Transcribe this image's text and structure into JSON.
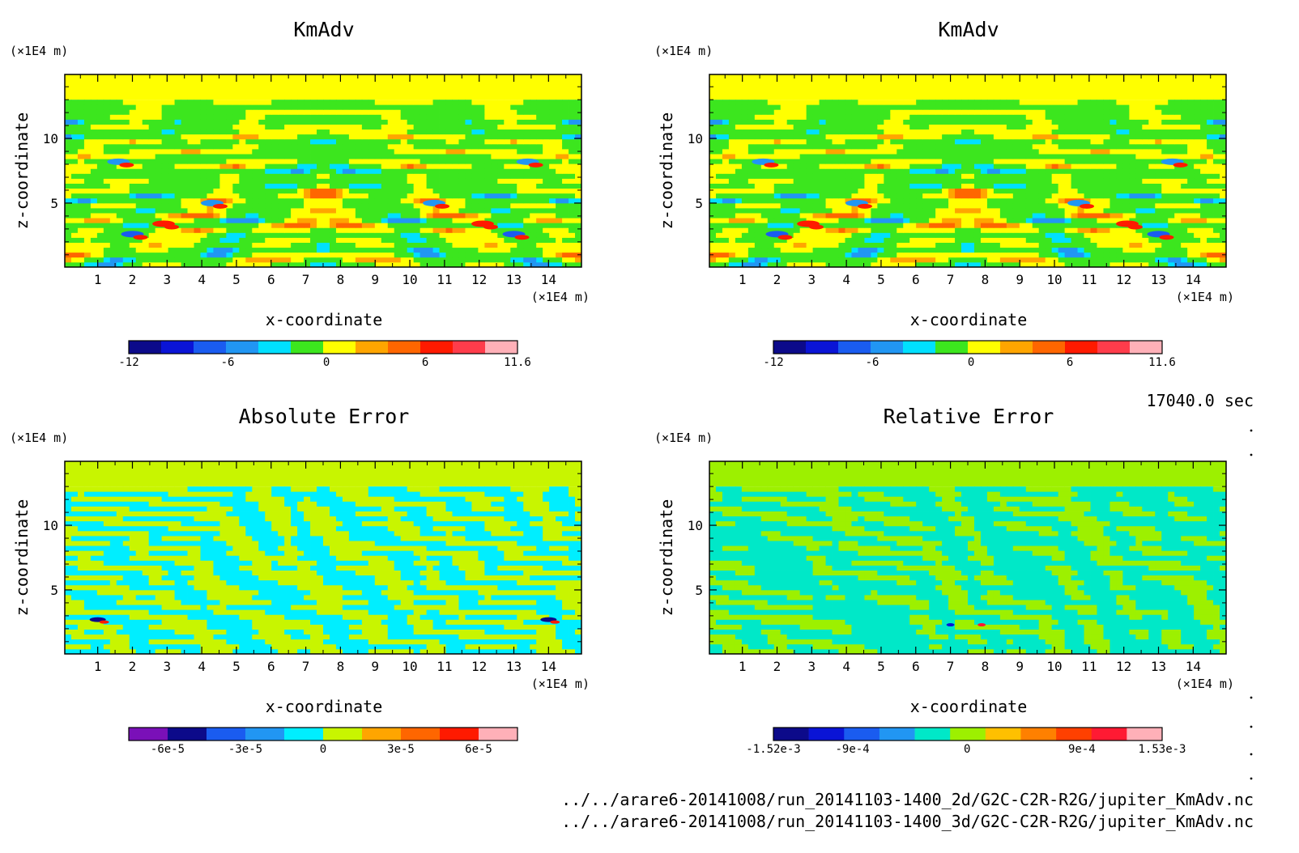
{
  "colorscales": {
    "kmadv": [
      "#0c0a8a",
      "#0a14d6",
      "#1a5cf0",
      "#2196f3",
      "#00e0ff",
      "#3ce61e",
      "#ffff00",
      "#ffa500",
      "#ff6600",
      "#ff1a00",
      "#ff3c4b",
      "#ffb0b8"
    ],
    "abs": [
      "#7a10b8",
      "#0c0a8a",
      "#1a5cf0",
      "#2196f3",
      "#00eeff",
      "#c8f500",
      "#ffa500",
      "#ff6600",
      "#ff1a00",
      "#ffb0b8"
    ],
    "rel": [
      "#0c0a8a",
      "#0a14d6",
      "#1a5cf0",
      "#2196f3",
      "#00e8c8",
      "#9df000",
      "#ffc000",
      "#ff8000",
      "#ff4000",
      "#ff1a33",
      "#ffb0b8"
    ]
  },
  "chart_data": [
    {
      "type": "heatmap",
      "title": "KmAdv",
      "xlabel": "x-coordinate",
      "ylabel": "z-coordinate",
      "x_unit": "(×1E4 m)",
      "y_unit": "(×1E4 m)",
      "xlim": [
        0.05,
        14.95
      ],
      "ylim": [
        0.05,
        14.95
      ],
      "x_ticks": [
        "1",
        "2",
        "3",
        "4",
        "5",
        "6",
        "7",
        "8",
        "9",
        "10",
        "11",
        "12",
        "13",
        "14"
      ],
      "y_ticks": [
        "5",
        "10"
      ],
      "colorbar": {
        "scale": "kmadv",
        "labels": [
          "-12",
          "-6",
          "0",
          "6",
          "11.6"
        ],
        "range": [
          -12,
          11.6
        ]
      }
    },
    {
      "type": "heatmap",
      "title": "KmAdv",
      "xlabel": "x-coordinate",
      "ylabel": "z-coordinate",
      "x_unit": "(×1E4 m)",
      "y_unit": "(×1E4 m)",
      "xlim": [
        0.05,
        14.95
      ],
      "ylim": [
        0.05,
        14.95
      ],
      "x_ticks": [
        "1",
        "2",
        "3",
        "4",
        "5",
        "6",
        "7",
        "8",
        "9",
        "10",
        "11",
        "12",
        "13",
        "14"
      ],
      "y_ticks": [
        "5",
        "10"
      ],
      "colorbar": {
        "scale": "kmadv",
        "labels": [
          "-12",
          "-6",
          "0",
          "6",
          "11.6"
        ],
        "range": [
          -12,
          11.6
        ]
      }
    },
    {
      "type": "heatmap",
      "title": "Absolute Error",
      "xlabel": "x-coordinate",
      "ylabel": "z-coordinate",
      "x_unit": "(×1E4 m)",
      "y_unit": "(×1E4 m)",
      "xlim": [
        0.05,
        14.95
      ],
      "ylim": [
        0.05,
        14.95
      ],
      "x_ticks": [
        "1",
        "2",
        "3",
        "4",
        "5",
        "6",
        "7",
        "8",
        "9",
        "10",
        "11",
        "12",
        "13",
        "14"
      ],
      "y_ticks": [
        "5",
        "10"
      ],
      "colorbar": {
        "scale": "abs",
        "labels": [
          "-6e-5",
          "-3e-5",
          "0",
          "3e-5",
          "6e-5"
        ],
        "range": [
          -7.5e-05,
          7.5e-05
        ]
      }
    },
    {
      "type": "heatmap",
      "title": "Relative Error",
      "xlabel": "x-coordinate",
      "ylabel": "z-coordinate",
      "x_unit": "(×1E4 m)",
      "y_unit": "(×1E4 m)",
      "xlim": [
        0.05,
        14.95
      ],
      "ylim": [
        0.05,
        14.95
      ],
      "x_ticks": [
        "1",
        "2",
        "3",
        "4",
        "5",
        "6",
        "7",
        "8",
        "9",
        "10",
        "11",
        "12",
        "13",
        "14"
      ],
      "y_ticks": [
        "5",
        "10"
      ],
      "colorbar": {
        "scale": "rel",
        "labels": [
          "-1.52e-3",
          "-9e-4",
          "0",
          "9e-4",
          "1.53e-3"
        ],
        "range": [
          -0.00152,
          0.00153
        ]
      }
    }
  ],
  "time_label": "17040.0 sec",
  "files": [
    "../../arare6-20141008/run_20141103-1400_2d/G2C-C2R-R2G/jupiter_KmAdv.nc",
    "../../arare6-20141008/run_20141103-1400_3d/G2C-C2R-R2G/jupiter_KmAdv.nc"
  ]
}
